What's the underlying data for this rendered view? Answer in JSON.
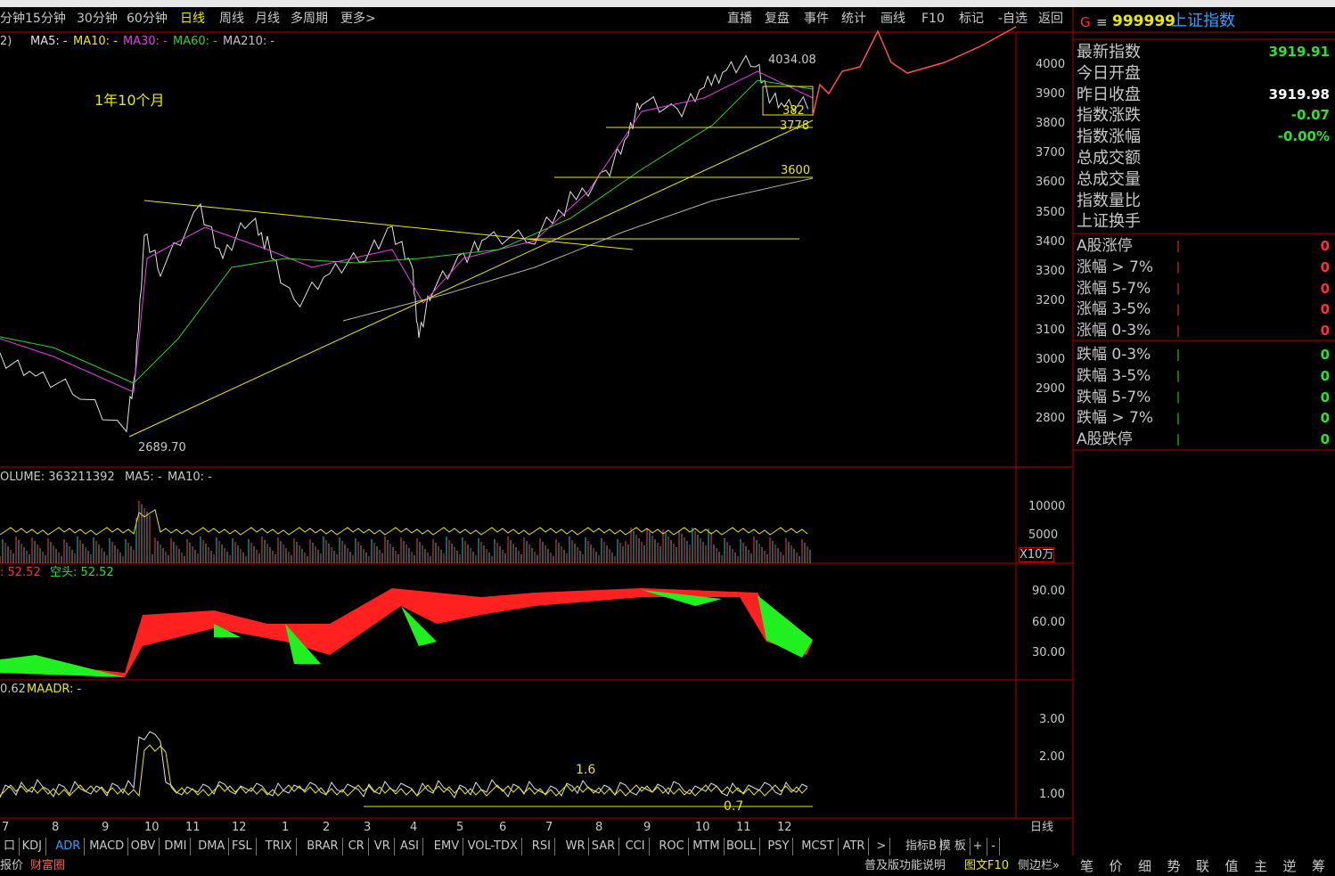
{
  "toolbar": {
    "periods": [
      "分钟",
      "15分钟",
      "30分钟",
      "60分钟",
      "日线",
      "周线",
      "月线",
      "多周期",
      "更多>"
    ],
    "tools": [
      "直播",
      "复盘",
      "事件",
      "统计",
      "画线",
      "F10",
      "标记",
      "-自选",
      "返回"
    ]
  },
  "main_chart": {
    "prefix": "2)",
    "ma_legend": [
      "MA5: -",
      "MA10: -",
      "MA30: -",
      "MA60: -",
      "MA210: -"
    ],
    "annotation": "1年10个月",
    "high_label": "4034.08",
    "low_label": "2689.70",
    "level_3600": "3600",
    "level_3778": "3778",
    "level_3820": "382",
    "yticks": [
      "4000",
      "3900",
      "3800",
      "3700",
      "3600",
      "3500",
      "3400",
      "3300",
      "3200",
      "3100",
      "3000",
      "2900",
      "2800"
    ]
  },
  "volume_panel": {
    "legend": [
      "OLUME: 363211392",
      "MA5: -",
      "MA10: -"
    ],
    "yticks": [
      "10000",
      "5000"
    ],
    "unit": "X10万"
  },
  "adr_panel": {
    "legend": [
      ": 52.52",
      "空头: 52.52"
    ],
    "yticks": [
      "90.00",
      "60.00",
      "30.00"
    ]
  },
  "maadr_panel": {
    "legend": [
      "0.62",
      "MAADR: -"
    ],
    "yticks": [
      "3.00",
      "2.00",
      "1.00"
    ],
    "annotations": [
      "1.6",
      "0.7"
    ]
  },
  "x_axis": {
    "months": [
      "7",
      "8",
      "9",
      "10",
      "11",
      "12",
      "1",
      "2",
      "3",
      "4",
      "5",
      "6",
      "7",
      "8",
      "9",
      "10",
      "11",
      "12"
    ],
    "period": "日线"
  },
  "indicator_tabs": [
    "口",
    "KDJ",
    "ADR",
    "MACD",
    "OBV",
    "DMI",
    "DMA",
    "FSL",
    "TRIX",
    "BRAR",
    "CR",
    "VR",
    "ASI",
    "EMV",
    "VOL-TDX",
    "RSI",
    "WR",
    "SAR",
    "CCI",
    "ROC",
    "MTM",
    "BOLL",
    "PSY",
    "MCST",
    "ATR",
    ">",
    "指标B",
    "模 板",
    "+",
    "-"
  ],
  "status_bar": {
    "left": [
      "报价",
      "财富圈"
    ],
    "right": [
      "普及版功能说明",
      "图文F10",
      "侧边栏»"
    ],
    "side_tabs": [
      "笔",
      "价",
      "细",
      "势",
      "联",
      "值",
      "主",
      "逆",
      "筹"
    ]
  },
  "quote_panel": {
    "header": {
      "mark": "G",
      "menu": "≡",
      "code": "999999",
      "name": "上证指数"
    },
    "rows": [
      {
        "label": "最新指数",
        "value": "3919.91"
      },
      {
        "label": "今日开盘",
        "value": ""
      },
      {
        "label": "昨日收盘",
        "value": "3919.98"
      },
      {
        "label": "指数涨跌",
        "value": "-0.07"
      },
      {
        "label": "指数涨幅",
        "value": "-0.00%"
      },
      {
        "label": "总成交额",
        "value": ""
      },
      {
        "label": "总成交量",
        "value": ""
      },
      {
        "label": "指数量比",
        "value": ""
      },
      {
        "label": "上证换手",
        "value": ""
      }
    ],
    "up_rows": [
      {
        "label": "A股涨停",
        "value": "0"
      },
      {
        "label": "涨幅 > 7%",
        "value": "0"
      },
      {
        "label": "涨幅 5-7%",
        "value": "0"
      },
      {
        "label": "涨幅 3-5%",
        "value": "0"
      },
      {
        "label": "涨幅 0-3%",
        "value": "0"
      }
    ],
    "down_rows": [
      {
        "label": "跌幅 0-3%",
        "value": "0"
      },
      {
        "label": "跌幅 3-5%",
        "value": "0"
      },
      {
        "label": "跌幅 5-7%",
        "value": "0"
      },
      {
        "label": "跌幅 > 7%",
        "value": "0"
      },
      {
        "label": "A股跌停",
        "value": "0"
      }
    ]
  }
}
